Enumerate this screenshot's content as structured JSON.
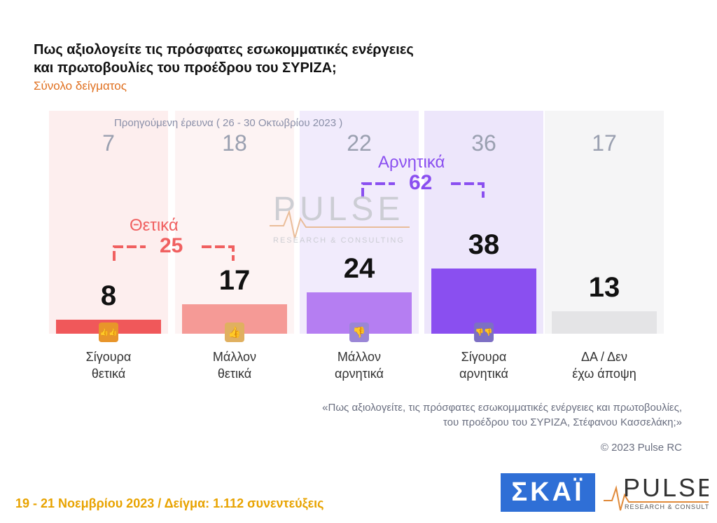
{
  "header": {
    "title_line1": "Πως αξιολογείτε τις πρόσφατες εσωκομματικές ενέργειες",
    "title_line2": "και πρωτοβουλίες του προέδρου του ΣΥΡΙΖΑ;",
    "subtitle": "Σύνολο δείγματος"
  },
  "previous_survey_label": "Προηγούμενη έρευνα  ( 26 - 30 Οκτωβρίου 2023 )",
  "chart_data": {
    "type": "bar",
    "categories": [
      [
        "Σίγουρα",
        "θετικά"
      ],
      [
        "Μάλλον",
        "θετικά"
      ],
      [
        "Μάλλον",
        "αρνητικά"
      ],
      [
        "Σίγουρα",
        "αρνητικά"
      ],
      [
        "ΔΑ / Δεν",
        "έχω άποψη"
      ]
    ],
    "series": [
      {
        "values": [
          8,
          17,
          24,
          38,
          13
        ]
      },
      {
        "values": [
          7,
          18,
          22,
          36,
          17
        ]
      }
    ],
    "groups": [
      {
        "label": "Θετικά",
        "value": "25",
        "color": "#f06060"
      },
      {
        "label": "Αρνητικά",
        "value": "62",
        "color": "#8a4ff0"
      }
    ],
    "colors": {
      "bars": [
        "#f0585a",
        "#f59a96",
        "#b57ef2",
        "#8a4ff0",
        "#e4e4e6"
      ],
      "backgrounds": [
        "#fdeeee",
        "#fdf3f3",
        "#f1ebfc",
        "#ede6fb",
        "#f5f5f6"
      ],
      "icons": [
        "#e8952a",
        "#e0b060",
        "#9a86d6",
        "#7d6fc4"
      ]
    },
    "icons": [
      "double-thumbs-up-icon",
      "thumbs-up-icon",
      "thumbs-down-icon",
      "double-thumbs-down-icon"
    ],
    "ylim": [
      0,
      40
    ]
  },
  "watermark": {
    "brand": "PULSE",
    "tagline": "RESEARCH & CONSULTING"
  },
  "quote": {
    "line1": "«Πως αξιολογείτε, τις πρόσφατες εσωκομματικές ενέργειες και πρωτοβουλίες,",
    "line2": "του προέδρου του ΣΥΡΙΖΑ, Στέφανου Κασσελάκη;»"
  },
  "copyright": "© 2023 Pulse RC",
  "footer": "19 - 21  Νοεμβρίου  2023  /  Δείγμα:  1.112 συνεντεύξεις",
  "logos": {
    "skai": "ΣΚΑΪ",
    "pulse": "PULSE",
    "pulse_tagline": "RESEARCH & CONSULTING"
  }
}
